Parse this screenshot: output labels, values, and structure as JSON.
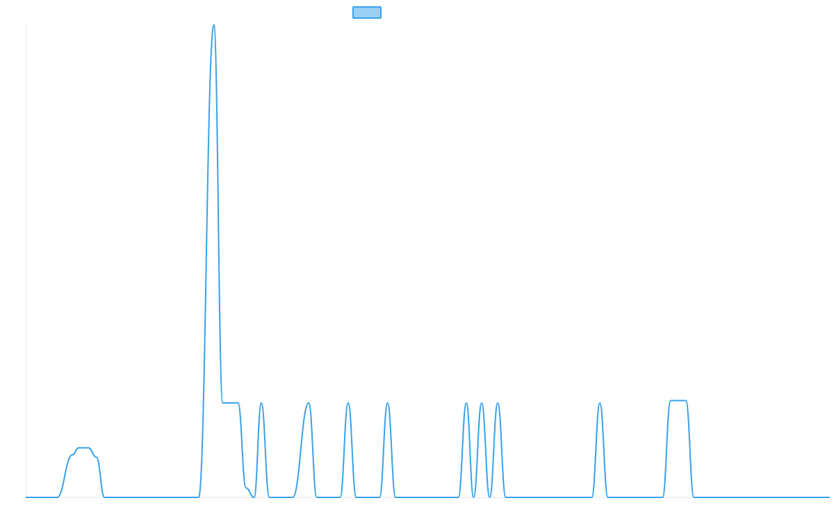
{
  "chart_data": {
    "type": "line",
    "title": "",
    "xlabel": "",
    "ylabel": "",
    "xlim": [
      0,
      1
    ],
    "ylim": [
      0,
      1
    ],
    "grid": false,
    "legend": {
      "placement": "top-center",
      "label": ""
    },
    "colors": {
      "line": "#36a2eb",
      "legend_fill": "#9ad0f5",
      "legend_border": "#36a2eb",
      "axis": "#e5e5e5"
    },
    "series": [
      {
        "x": [
          0.0,
          0.039,
          0.058,
          0.066,
          0.078,
          0.088,
          0.098,
          0.118,
          0.156,
          0.215,
          0.234,
          0.245,
          0.255,
          0.264,
          0.274,
          0.284,
          0.293,
          0.303,
          0.313,
          0.323,
          0.332,
          0.352,
          0.362,
          0.372,
          0.381,
          0.391,
          0.401,
          0.411,
          0.421,
          0.43,
          0.44,
          0.45,
          0.46,
          0.469,
          0.479,
          0.489,
          0.499,
          0.509,
          0.519,
          0.528,
          0.538,
          0.548,
          0.557,
          0.567,
          0.577,
          0.587,
          0.597,
          0.606,
          0.616,
          0.626,
          0.636,
          0.645,
          0.655,
          0.665,
          0.675,
          0.684,
          0.694,
          0.704,
          0.714,
          0.724,
          0.733,
          0.743,
          0.753,
          0.762,
          0.772,
          0.782,
          0.792,
          0.802,
          0.811,
          0.821,
          0.831,
          0.841,
          0.851,
          0.86,
          0.87,
          0.88,
          0.89,
          0.899,
          0.909,
          0.919,
          0.929,
          0.939,
          1.0
        ],
        "y": [
          0.0,
          0.0,
          0.09,
          0.105,
          0.105,
          0.085,
          0.0,
          0.0,
          0.0,
          0.0,
          1.0,
          0.2,
          0.2,
          0.2,
          0.02,
          0.0,
          0.2,
          0.0,
          0.0,
          0.0,
          0.0,
          0.2,
          0.0,
          0.0,
          0.0,
          0.0,
          0.2,
          0.0,
          0.0,
          0.0,
          0.0,
          0.2,
          0.0,
          0.0,
          0.0,
          0.0,
          0.0,
          0.0,
          0.0,
          0.0,
          0.0,
          0.2,
          0.0,
          0.2,
          0.0,
          0.2,
          0.0,
          0.0,
          0.0,
          0.0,
          0.0,
          0.0,
          0.0,
          0.0,
          0.0,
          0.0,
          0.0,
          0.0,
          0.2,
          0.0,
          0.0,
          0.0,
          0.0,
          0.0,
          0.0,
          0.0,
          0.0,
          0.205,
          0.205,
          0.205,
          0.0,
          0.0,
          0.0,
          0.0,
          0.0,
          0.0,
          0.0,
          0.0,
          0.0,
          0.0,
          0.0,
          0.0,
          0.0
        ]
      }
    ]
  }
}
